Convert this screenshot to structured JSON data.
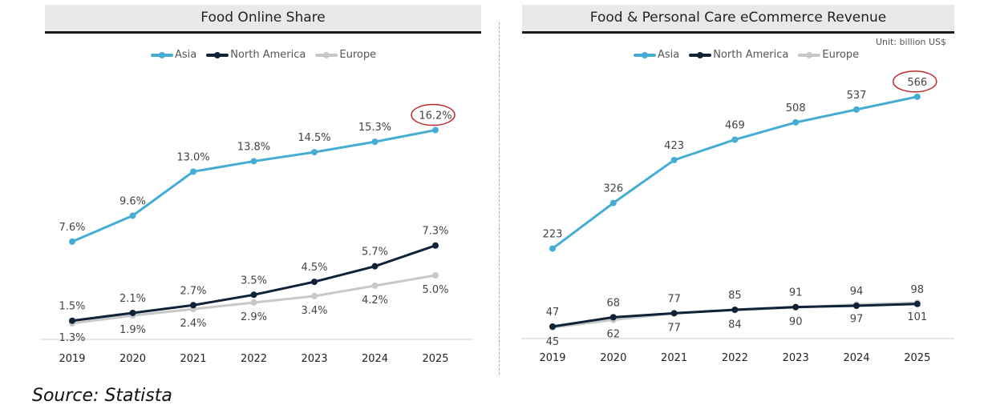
{
  "source": "Source: Statista",
  "colors": {
    "Asia": "#45acd4",
    "North America": "#0f2238",
    "Europe": "#c8c8c8",
    "highlight": "#c0282d"
  },
  "chart_data": [
    {
      "type": "line",
      "title": "Food Online Share",
      "categories": [
        "2019",
        "2020",
        "2021",
        "2022",
        "2023",
        "2024",
        "2025"
      ],
      "ylim": [
        0,
        20
      ],
      "grid": false,
      "legend": "top",
      "series": [
        {
          "name": "Asia",
          "values": [
            7.6,
            9.6,
            13.0,
            13.8,
            14.5,
            15.3,
            16.2
          ],
          "labels": [
            "7.6%",
            "9.6%",
            "13.0%",
            "13.8%",
            "14.5%",
            "15.3%",
            "16.2%"
          ],
          "label_pos": "above"
        },
        {
          "name": "North America",
          "values": [
            1.5,
            2.1,
            2.7,
            3.5,
            4.5,
            5.7,
            7.3
          ],
          "labels": [
            "1.5%",
            "2.1%",
            "2.7%",
            "3.5%",
            "4.5%",
            "5.7%",
            "7.3%"
          ],
          "label_pos": "above"
        },
        {
          "name": "Europe",
          "values": [
            1.3,
            1.9,
            2.4,
            2.9,
            3.4,
            4.2,
            5.0
          ],
          "labels": [
            "1.3%",
            "1.9%",
            "2.4%",
            "2.9%",
            "3.4%",
            "4.2%",
            "5.0%"
          ],
          "label_pos": "below"
        }
      ],
      "highlight": "16.2%"
    },
    {
      "type": "line",
      "title": "Food & Personal Care eCommerce Revenue",
      "unit": "Unit: billion US$",
      "categories": [
        "2019",
        "2020",
        "2021",
        "2022",
        "2023",
        "2024",
        "2025"
      ],
      "ylim": [
        0,
        600
      ],
      "grid": false,
      "legend": "top",
      "series": [
        {
          "name": "Asia",
          "values": [
            223,
            326,
            423,
            469,
            508,
            537,
            566
          ],
          "labels": [
            "223",
            "326",
            "423",
            "469",
            "508",
            "537",
            "566"
          ],
          "label_pos": "above"
        },
        {
          "name": "North America",
          "values": [
            47,
            68,
            77,
            85,
            91,
            94,
            98
          ],
          "labels": [
            "47",
            "68",
            "77",
            "85",
            "91",
            "94",
            "98"
          ],
          "label_pos": "above"
        },
        {
          "name": "Europe",
          "values": [
            45,
            62,
            77,
            84,
            90,
            97,
            101
          ],
          "labels": [
            "45",
            "62",
            "77",
            "84",
            "90",
            "97",
            "101"
          ],
          "label_pos": "below"
        }
      ],
      "highlight": "566"
    }
  ]
}
